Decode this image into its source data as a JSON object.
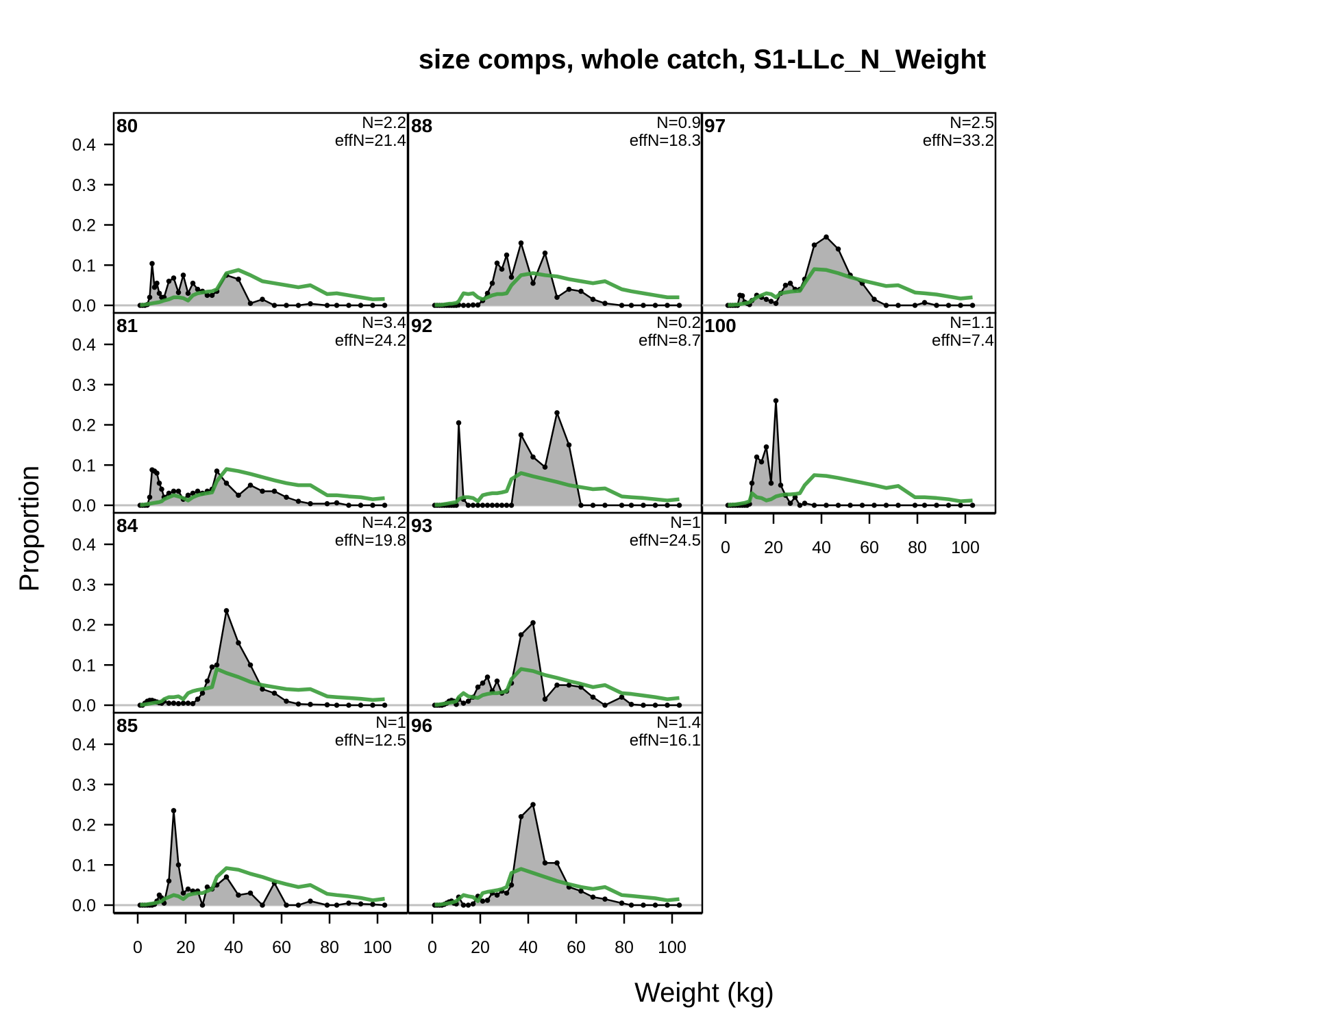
{
  "chart_data": {
    "type": "area",
    "title": "size comps, whole catch, S1-LLc_N_Weight",
    "xlabel": "Weight (kg)",
    "ylabel": "Proportion",
    "xlim": [
      -10,
      113
    ],
    "ylim": [
      0,
      0.48
    ],
    "x_ticks": [
      0,
      20,
      40,
      60,
      80,
      100
    ],
    "x_tick_labels": [
      "0",
      "20",
      "40",
      "60",
      "80",
      "100"
    ],
    "y_ticks": [
      0.0,
      0.1,
      0.2,
      0.3,
      0.4
    ],
    "y_tick_labels": [
      "0.0",
      "0.1",
      "0.2",
      "0.3",
      "0.4"
    ],
    "grid": false,
    "legend": "none",
    "series_styles": {
      "observed": {
        "color": "#000000",
        "fill": "#b3b3b3",
        "markers": true
      },
      "expected": {
        "color": "#3a9c3a",
        "fill": "none",
        "markers": false
      },
      "zero_line": {
        "color": "#c0c0c0"
      }
    },
    "x": [
      1,
      2,
      3,
      4,
      5,
      6,
      7,
      8,
      9,
      10,
      11,
      13,
      15,
      17,
      19,
      21,
      23,
      25,
      27,
      29,
      31,
      33,
      37,
      42,
      47,
      52,
      57,
      62,
      67,
      72,
      79,
      83,
      88,
      93,
      98,
      103
    ],
    "panels": [
      {
        "label": "80",
        "N": "N=2.2",
        "effN": "effN=21.4",
        "observed": [
          0,
          0,
          0,
          0.002,
          0.02,
          0.104,
          0.045,
          0.055,
          0.03,
          0.02,
          0.02,
          0.06,
          0.068,
          0.032,
          0.075,
          0.03,
          0.055,
          0.04,
          0.035,
          0.025,
          0.025,
          0.035,
          0.075,
          0.065,
          0.005,
          0.015,
          0,
          0,
          0,
          0.004,
          0,
          0,
          0,
          0,
          0,
          0
        ],
        "expected": [
          0.001,
          0.001,
          0.002,
          0.003,
          0.004,
          0.005,
          0.006,
          0.007,
          0.008,
          0.01,
          0.012,
          0.015,
          0.02,
          0.02,
          0.018,
          0.012,
          0.025,
          0.03,
          0.032,
          0.034,
          0.035,
          0.04,
          0.08,
          0.088,
          0.075,
          0.06,
          0.055,
          0.05,
          0.045,
          0.05,
          0.028,
          0.03,
          0.025,
          0.02,
          0.015,
          0.016
        ]
      },
      {
        "label": "88",
        "N": "N=0.9",
        "effN": "effN=18.3",
        "observed": [
          0,
          0,
          0,
          0,
          0,
          0,
          0,
          0,
          0,
          0,
          0.001,
          0,
          0,
          0.001,
          0.001,
          0.012,
          0.03,
          0.055,
          0.105,
          0.09,
          0.125,
          0.07,
          0.155,
          0.055,
          0.13,
          0.02,
          0.04,
          0.035,
          0.015,
          0.005,
          0,
          0,
          0,
          0,
          0,
          0
        ],
        "expected": [
          0.001,
          0.001,
          0.001,
          0.001,
          0.002,
          0.003,
          0.004,
          0.004,
          0.005,
          0.006,
          0.01,
          0.03,
          0.028,
          0.03,
          0.02,
          0.015,
          0.02,
          0.025,
          0.028,
          0.028,
          0.03,
          0.05,
          0.075,
          0.08,
          0.075,
          0.072,
          0.065,
          0.06,
          0.055,
          0.06,
          0.04,
          0.035,
          0.03,
          0.025,
          0.02,
          0.02
        ]
      },
      {
        "label": "97",
        "N": "N=2.5",
        "effN": "effN=33.2",
        "observed": [
          0,
          0,
          0,
          0,
          0,
          0.025,
          0.024,
          0.008,
          0.005,
          0.002,
          0.012,
          0.025,
          0.02,
          0.015,
          0.01,
          0.005,
          0.03,
          0.05,
          0.055,
          0.04,
          0.04,
          0.065,
          0.15,
          0.17,
          0.14,
          0.075,
          0.055,
          0.015,
          0,
          0,
          0,
          0.007,
          0,
          0,
          0,
          0
        ],
        "expected": [
          0.001,
          0.001,
          0.001,
          0.002,
          0.002,
          0.003,
          0.004,
          0.005,
          0.006,
          0.008,
          0.012,
          0.02,
          0.025,
          0.03,
          0.028,
          0.02,
          0.03,
          0.032,
          0.034,
          0.035,
          0.036,
          0.055,
          0.09,
          0.088,
          0.08,
          0.07,
          0.062,
          0.055,
          0.048,
          0.05,
          0.032,
          0.03,
          0.027,
          0.022,
          0.017,
          0.02
        ]
      },
      {
        "label": "81",
        "N": "N=3.4",
        "effN": "effN=24.2",
        "observed": [
          0,
          0,
          0,
          0,
          0.02,
          0.088,
          0.085,
          0.08,
          0.055,
          0.04,
          0.02,
          0.03,
          0.035,
          0.035,
          0.015,
          0.025,
          0.03,
          0.035,
          0.03,
          0.035,
          0.04,
          0.085,
          0.055,
          0.025,
          0.05,
          0.035,
          0.035,
          0.02,
          0.01,
          0.004,
          0.004,
          0.006,
          0,
          0,
          0,
          0
        ],
        "expected": [
          0.001,
          0.001,
          0.002,
          0.003,
          0.004,
          0.005,
          0.006,
          0.007,
          0.008,
          0.01,
          0.015,
          0.02,
          0.025,
          0.022,
          0.018,
          0.012,
          0.02,
          0.025,
          0.028,
          0.03,
          0.032,
          0.06,
          0.09,
          0.085,
          0.078,
          0.07,
          0.062,
          0.055,
          0.05,
          0.05,
          0.025,
          0.025,
          0.022,
          0.02,
          0.015,
          0.018
        ]
      },
      {
        "label": "92",
        "N": "N=0.2",
        "effN": "effN=8.7",
        "observed": [
          0,
          0,
          0,
          0,
          0,
          0,
          0,
          0,
          0,
          0,
          0.205,
          0.015,
          0,
          0,
          0,
          0,
          0,
          0,
          0,
          0,
          0,
          0,
          0.175,
          0.12,
          0.095,
          0.23,
          0.15,
          0,
          0,
          0,
          0,
          0,
          0,
          0,
          0,
          0
        ],
        "expected": [
          0.001,
          0.001,
          0.001,
          0.002,
          0.003,
          0.004,
          0.005,
          0.006,
          0.007,
          0.008,
          0.015,
          0.02,
          0.02,
          0.018,
          0.01,
          0.025,
          0.028,
          0.03,
          0.03,
          0.032,
          0.035,
          0.065,
          0.08,
          0.072,
          0.065,
          0.058,
          0.05,
          0.045,
          0.04,
          0.042,
          0.022,
          0.02,
          0.018,
          0.015,
          0.012,
          0.015
        ]
      },
      {
        "label": "100",
        "N": "N=1.1",
        "effN": "effN=7.4",
        "observed": [
          0,
          0,
          0,
          0,
          0,
          0,
          0,
          0,
          0,
          0.003,
          0.055,
          0.12,
          0.108,
          0.145,
          0.055,
          0.26,
          0.05,
          0.025,
          0.005,
          0.02,
          0,
          0.005,
          0,
          0,
          0,
          0,
          0,
          0,
          0,
          0,
          0,
          0,
          0,
          0,
          0,
          0
        ],
        "expected": [
          0.001,
          0.001,
          0.002,
          0.002,
          0.003,
          0.004,
          0.005,
          0.006,
          0.008,
          0.01,
          0.03,
          0.02,
          0.018,
          0.012,
          0.015,
          0.022,
          0.025,
          0.027,
          0.027,
          0.028,
          0.03,
          0.05,
          0.075,
          0.073,
          0.068,
          0.062,
          0.056,
          0.05,
          0.043,
          0.048,
          0.02,
          0.02,
          0.018,
          0.015,
          0.01,
          0.012
        ]
      },
      {
        "label": "84",
        "N": "N=4.2",
        "effN": "effN=19.8",
        "observed": [
          0,
          0,
          0.005,
          0.01,
          0.012,
          0.012,
          0.01,
          0.008,
          0.006,
          0.005,
          0.01,
          0.005,
          0.005,
          0.004,
          0.005,
          0.005,
          0.004,
          0.015,
          0.03,
          0.06,
          0.095,
          0.1,
          0.235,
          0.155,
          0.1,
          0.04,
          0.03,
          0.01,
          0.003,
          0.002,
          0.001,
          0,
          0,
          0,
          0,
          0
        ],
        "expected": [
          0.001,
          0.001,
          0.002,
          0.003,
          0.004,
          0.005,
          0.006,
          0.007,
          0.008,
          0.01,
          0.015,
          0.02,
          0.02,
          0.022,
          0.015,
          0.03,
          0.035,
          0.038,
          0.04,
          0.042,
          0.045,
          0.09,
          0.08,
          0.07,
          0.058,
          0.05,
          0.045,
          0.04,
          0.038,
          0.04,
          0.022,
          0.02,
          0.018,
          0.016,
          0.013,
          0.015
        ]
      },
      {
        "label": "93",
        "N": "N=1",
        "effN": "effN=24.5",
        "observed": [
          0,
          0,
          0,
          0,
          0.002,
          0.005,
          0.01,
          0.012,
          0.01,
          0.002,
          0.015,
          0.005,
          0.01,
          0.02,
          0.045,
          0.055,
          0.07,
          0.035,
          0.06,
          0.03,
          0.035,
          0.055,
          0.175,
          0.205,
          0.015,
          0.05,
          0.05,
          0.045,
          0.02,
          0,
          0.02,
          0.002,
          0,
          0,
          0,
          0
        ],
        "expected": [
          0.001,
          0.001,
          0.002,
          0.003,
          0.004,
          0.005,
          0.006,
          0.007,
          0.008,
          0.01,
          0.02,
          0.03,
          0.022,
          0.02,
          0.018,
          0.025,
          0.028,
          0.03,
          0.03,
          0.032,
          0.035,
          0.065,
          0.09,
          0.085,
          0.075,
          0.068,
          0.06,
          0.053,
          0.045,
          0.05,
          0.03,
          0.028,
          0.024,
          0.02,
          0.015,
          0.018
        ]
      },
      {
        "label": "85",
        "N": "N=1",
        "effN": "effN=12.5",
        "observed": [
          0,
          0,
          0,
          0,
          0,
          0,
          0.002,
          0.01,
          0.025,
          0.018,
          0.005,
          0.06,
          0.235,
          0.1,
          0.03,
          0.04,
          0.035,
          0.035,
          0,
          0.045,
          0.04,
          0.05,
          0.07,
          0.025,
          0.03,
          0,
          0.055,
          0,
          0,
          0.01,
          0,
          0,
          0.005,
          0.003,
          0.002,
          0
        ],
        "expected": [
          0.001,
          0.001,
          0.001,
          0.002,
          0.003,
          0.004,
          0.005,
          0.006,
          0.008,
          0.01,
          0.015,
          0.02,
          0.025,
          0.022,
          0.015,
          0.025,
          0.028,
          0.03,
          0.03,
          0.035,
          0.04,
          0.07,
          0.092,
          0.088,
          0.078,
          0.07,
          0.06,
          0.052,
          0.045,
          0.05,
          0.028,
          0.025,
          0.022,
          0.018,
          0.012,
          0.016
        ]
      },
      {
        "label": "96",
        "N": "N=1.4",
        "effN": "effN=16.1",
        "observed": [
          0,
          0,
          0,
          0,
          0.002,
          0.005,
          0.008,
          0.01,
          0.005,
          0.003,
          0.02,
          0,
          0,
          0.003,
          0.022,
          0.01,
          0.012,
          0.03,
          0.025,
          0.035,
          0.03,
          0.05,
          0.22,
          0.25,
          0.105,
          0.105,
          0.045,
          0.035,
          0.02,
          0.015,
          0.005,
          0,
          0,
          0,
          0,
          0
        ],
        "expected": [
          0.001,
          0.001,
          0.001,
          0.002,
          0.003,
          0.004,
          0.005,
          0.006,
          0.008,
          0.01,
          0.015,
          0.025,
          0.022,
          0.02,
          0.01,
          0.03,
          0.033,
          0.035,
          0.037,
          0.04,
          0.045,
          0.08,
          0.09,
          0.08,
          0.07,
          0.06,
          0.052,
          0.045,
          0.04,
          0.045,
          0.025,
          0.023,
          0.02,
          0.017,
          0.012,
          0.015
        ]
      }
    ]
  }
}
